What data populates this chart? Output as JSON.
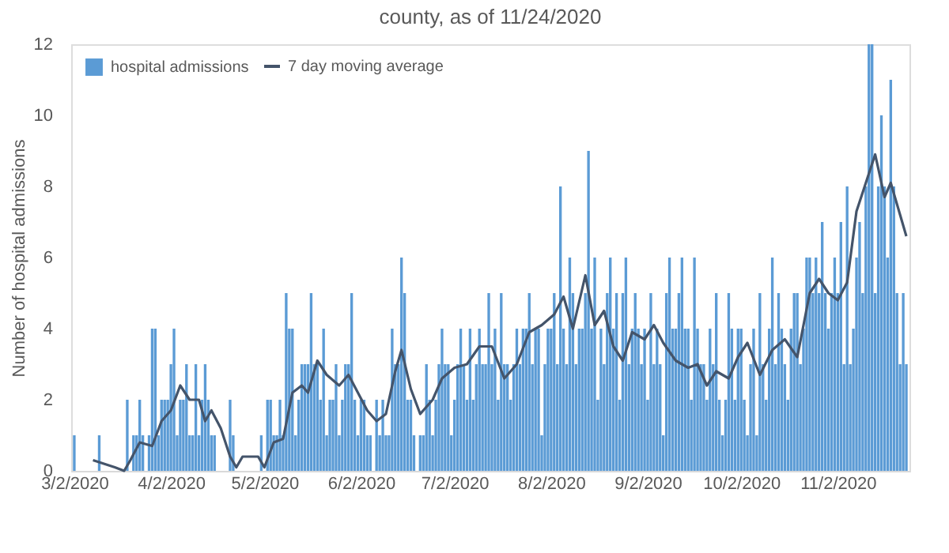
{
  "chart_data": {
    "type": "bar",
    "title": "county, as of 11/24/2020",
    "ylabel": "Number of hospital admissions",
    "x": [
      "2020-03-02",
      "2020-03-03",
      "2020-03-04",
      "2020-03-05",
      "2020-03-06",
      "2020-03-07",
      "2020-03-08",
      "2020-03-09",
      "2020-03-10",
      "2020-03-11",
      "2020-03-12",
      "2020-03-13",
      "2020-03-14",
      "2020-03-15",
      "2020-03-16",
      "2020-03-17",
      "2020-03-18",
      "2020-03-19",
      "2020-03-20",
      "2020-03-21",
      "2020-03-22",
      "2020-03-23",
      "2020-03-24",
      "2020-03-25",
      "2020-03-26",
      "2020-03-27",
      "2020-03-28",
      "2020-03-29",
      "2020-03-30",
      "2020-03-31",
      "2020-04-01",
      "2020-04-02",
      "2020-04-03",
      "2020-04-04",
      "2020-04-05",
      "2020-04-06",
      "2020-04-07",
      "2020-04-08",
      "2020-04-09",
      "2020-04-10",
      "2020-04-11",
      "2020-04-12",
      "2020-04-13",
      "2020-04-14",
      "2020-04-15",
      "2020-04-16",
      "2020-04-17",
      "2020-04-18",
      "2020-04-19",
      "2020-04-20",
      "2020-04-21",
      "2020-04-22",
      "2020-04-23",
      "2020-04-24",
      "2020-04-25",
      "2020-04-26",
      "2020-04-27",
      "2020-04-28",
      "2020-04-29",
      "2020-04-30",
      "2020-05-01",
      "2020-05-02",
      "2020-05-03",
      "2020-05-04",
      "2020-05-05",
      "2020-05-06",
      "2020-05-07",
      "2020-05-08",
      "2020-05-09",
      "2020-05-10",
      "2020-05-11",
      "2020-05-12",
      "2020-05-13",
      "2020-05-14",
      "2020-05-15",
      "2020-05-16",
      "2020-05-17",
      "2020-05-18",
      "2020-05-19",
      "2020-05-20",
      "2020-05-21",
      "2020-05-22",
      "2020-05-23",
      "2020-05-24",
      "2020-05-25",
      "2020-05-26",
      "2020-05-27",
      "2020-05-28",
      "2020-05-29",
      "2020-05-30",
      "2020-05-31",
      "2020-06-01",
      "2020-06-02",
      "2020-06-03",
      "2020-06-04",
      "2020-06-05",
      "2020-06-06",
      "2020-06-07",
      "2020-06-08",
      "2020-06-09",
      "2020-06-10",
      "2020-06-11",
      "2020-06-12",
      "2020-06-13",
      "2020-06-14",
      "2020-06-15",
      "2020-06-16",
      "2020-06-17",
      "2020-06-18",
      "2020-06-19",
      "2020-06-20",
      "2020-06-21",
      "2020-06-22",
      "2020-06-23",
      "2020-06-24",
      "2020-06-25",
      "2020-06-26",
      "2020-06-27",
      "2020-06-28",
      "2020-06-29",
      "2020-06-30",
      "2020-07-01",
      "2020-07-02",
      "2020-07-03",
      "2020-07-04",
      "2020-07-05",
      "2020-07-06",
      "2020-07-07",
      "2020-07-08",
      "2020-07-09",
      "2020-07-10",
      "2020-07-11",
      "2020-07-12",
      "2020-07-13",
      "2020-07-14",
      "2020-07-15",
      "2020-07-16",
      "2020-07-17",
      "2020-07-18",
      "2020-07-19",
      "2020-07-20",
      "2020-07-21",
      "2020-07-22",
      "2020-07-23",
      "2020-07-24",
      "2020-07-25",
      "2020-07-26",
      "2020-07-27",
      "2020-07-28",
      "2020-07-29",
      "2020-07-30",
      "2020-07-31",
      "2020-08-01",
      "2020-08-02",
      "2020-08-03",
      "2020-08-04",
      "2020-08-05",
      "2020-08-06",
      "2020-08-07",
      "2020-08-08",
      "2020-08-09",
      "2020-08-10",
      "2020-08-11",
      "2020-08-12",
      "2020-08-13",
      "2020-08-14",
      "2020-08-15",
      "2020-08-16",
      "2020-08-17",
      "2020-08-18",
      "2020-08-19",
      "2020-08-20",
      "2020-08-21",
      "2020-08-22",
      "2020-08-23",
      "2020-08-24",
      "2020-08-25",
      "2020-08-26",
      "2020-08-27",
      "2020-08-28",
      "2020-08-29",
      "2020-08-30",
      "2020-08-31",
      "2020-09-01",
      "2020-09-02",
      "2020-09-03",
      "2020-09-04",
      "2020-09-05",
      "2020-09-06",
      "2020-09-07",
      "2020-09-08",
      "2020-09-09",
      "2020-09-10",
      "2020-09-11",
      "2020-09-12",
      "2020-09-13",
      "2020-09-14",
      "2020-09-15",
      "2020-09-16",
      "2020-09-17",
      "2020-09-18",
      "2020-09-19",
      "2020-09-20",
      "2020-09-21",
      "2020-09-22",
      "2020-09-23",
      "2020-09-24",
      "2020-09-25",
      "2020-09-26",
      "2020-09-27",
      "2020-09-28",
      "2020-09-29",
      "2020-09-30",
      "2020-10-01",
      "2020-10-02",
      "2020-10-03",
      "2020-10-04",
      "2020-10-05",
      "2020-10-06",
      "2020-10-07",
      "2020-10-08",
      "2020-10-09",
      "2020-10-10",
      "2020-10-11",
      "2020-10-12",
      "2020-10-13",
      "2020-10-14",
      "2020-10-15",
      "2020-10-16",
      "2020-10-17",
      "2020-10-18",
      "2020-10-19",
      "2020-10-20",
      "2020-10-21",
      "2020-10-22",
      "2020-10-23",
      "2020-10-24",
      "2020-10-25",
      "2020-10-26",
      "2020-10-27",
      "2020-10-28",
      "2020-10-29",
      "2020-10-30",
      "2020-10-31",
      "2020-11-01",
      "2020-11-02",
      "2020-11-03",
      "2020-11-04",
      "2020-11-05",
      "2020-11-06",
      "2020-11-07",
      "2020-11-08",
      "2020-11-09",
      "2020-11-10",
      "2020-11-11",
      "2020-11-12",
      "2020-11-13",
      "2020-11-14",
      "2020-11-15",
      "2020-11-16",
      "2020-11-17",
      "2020-11-18",
      "2020-11-19",
      "2020-11-20",
      "2020-11-21",
      "2020-11-22",
      "2020-11-23",
      "2020-11-24"
    ],
    "series": [
      {
        "name": "hospital admissions",
        "color": "#5b9bd5",
        "values": [
          1,
          0,
          0,
          0,
          0,
          0,
          0,
          0,
          1,
          0,
          0,
          0,
          0,
          0,
          0,
          0,
          0,
          2,
          0,
          1,
          1,
          2,
          1,
          0,
          1,
          4,
          4,
          1,
          2,
          2,
          2,
          3,
          4,
          1,
          2,
          2,
          3,
          1,
          1,
          3,
          1,
          2,
          3,
          2,
          1,
          1,
          0,
          0,
          0,
          0,
          2,
          1,
          0,
          0,
          0,
          0,
          0,
          0,
          0,
          0,
          1,
          0,
          2,
          2,
          1,
          1,
          2,
          1,
          5,
          4,
          4,
          1,
          2,
          3,
          3,
          3,
          5,
          3,
          3,
          2,
          4,
          1,
          2,
          2,
          3,
          1,
          2,
          3,
          3,
          5,
          2,
          1,
          2,
          2,
          1,
          1,
          0,
          2,
          1,
          2,
          1,
          1,
          4,
          3,
          3,
          6,
          5,
          2,
          2,
          1,
          0,
          1,
          1,
          3,
          2,
          1,
          2,
          3,
          4,
          3,
          3,
          1,
          2,
          3,
          4,
          3,
          2,
          4,
          2,
          3,
          4,
          3,
          3,
          5,
          3,
          4,
          2,
          5,
          3,
          3,
          2,
          3,
          4,
          3,
          4,
          4,
          5,
          3,
          4,
          4,
          1,
          3,
          4,
          4,
          5,
          3,
          8,
          4,
          3,
          6,
          5,
          3,
          4,
          4,
          5,
          9,
          4,
          6,
          2,
          4,
          3,
          5,
          6,
          4,
          5,
          2,
          5,
          6,
          3,
          4,
          5,
          4,
          3,
          4,
          2,
          5,
          3,
          4,
          3,
          1,
          5,
          6,
          4,
          4,
          5,
          6,
          4,
          4,
          2,
          6,
          4,
          3,
          3,
          2,
          4,
          3,
          5,
          2,
          1,
          2,
          5,
          4,
          2,
          4,
          4,
          2,
          1,
          3,
          4,
          1,
          5,
          3,
          2,
          4,
          6,
          3,
          5,
          4,
          3,
          2,
          4,
          5,
          5,
          3,
          4,
          6,
          6,
          5,
          6,
          5,
          7,
          5,
          4,
          5,
          6,
          5,
          7,
          3,
          8,
          3,
          4,
          6,
          7,
          5,
          8,
          12,
          12,
          5,
          8,
          10,
          8,
          6,
          11,
          8,
          5,
          3,
          5,
          3
        ]
      },
      {
        "name": "7 day moving average",
        "type": "line",
        "color": "#44546a",
        "x": [
          "2020-03-08",
          "2020-03-15",
          "2020-03-18",
          "2020-03-20",
          "2020-03-23",
          "2020-03-27",
          "2020-03-30",
          "2020-04-02",
          "2020-04-05",
          "2020-04-08",
          "2020-04-11",
          "2020-04-13",
          "2020-04-15",
          "2020-04-18",
          "2020-04-21",
          "2020-04-23",
          "2020-04-25",
          "2020-04-30",
          "2020-05-02",
          "2020-05-05",
          "2020-05-08",
          "2020-05-11",
          "2020-05-14",
          "2020-05-16",
          "2020-05-19",
          "2020-05-22",
          "2020-05-26",
          "2020-05-29",
          "2020-06-01",
          "2020-06-04",
          "2020-06-07",
          "2020-06-10",
          "2020-06-13",
          "2020-06-15",
          "2020-06-18",
          "2020-06-21",
          "2020-06-25",
          "2020-06-28",
          "2020-07-02",
          "2020-07-06",
          "2020-07-10",
          "2020-07-14",
          "2020-07-18",
          "2020-07-22",
          "2020-07-26",
          "2020-07-30",
          "2020-08-03",
          "2020-08-06",
          "2020-08-09",
          "2020-08-13",
          "2020-08-16",
          "2020-08-19",
          "2020-08-22",
          "2020-08-25",
          "2020-08-28",
          "2020-09-01",
          "2020-09-04",
          "2020-09-07",
          "2020-09-11",
          "2020-09-15",
          "2020-09-18",
          "2020-09-21",
          "2020-09-24",
          "2020-09-28",
          "2020-10-01",
          "2020-10-04",
          "2020-10-08",
          "2020-10-12",
          "2020-10-16",
          "2020-10-20",
          "2020-10-24",
          "2020-10-27",
          "2020-10-30",
          "2020-11-02",
          "2020-11-05",
          "2020-11-08",
          "2020-11-11",
          "2020-11-14",
          "2020-11-17",
          "2020-11-19",
          "2020-11-22",
          "2020-11-24"
        ],
        "values": [
          0.3,
          0.1,
          0,
          0.3,
          0.8,
          0.7,
          1.4,
          1.7,
          2.4,
          2.0,
          2.0,
          1.4,
          1.7,
          1.2,
          0.4,
          0.1,
          0.4,
          0.4,
          0.1,
          0.8,
          0.9,
          2.2,
          2.4,
          2.2,
          3.1,
          2.7,
          2.4,
          2.7,
          2.2,
          1.7,
          1.4,
          1.6,
          2.8,
          3.4,
          2.3,
          1.6,
          2.0,
          2.6,
          2.9,
          3.0,
          3.5,
          3.5,
          2.6,
          3.0,
          3.9,
          4.1,
          4.4,
          4.9,
          4.0,
          5.5,
          4.1,
          4.5,
          3.5,
          3.1,
          3.9,
          3.7,
          4.1,
          3.6,
          3.1,
          2.9,
          3.0,
          2.4,
          2.8,
          2.6,
          3.2,
          3.6,
          2.7,
          3.4,
          3.7,
          3.2,
          5.0,
          5.4,
          5.0,
          4.8,
          5.3,
          7.3,
          8.1,
          8.9,
          7.7,
          8.1,
          7.2,
          6.6
        ]
      }
    ],
    "xlim": [
      "2020-03-01",
      "2020-11-25"
    ],
    "xticks": [
      {
        "value": "2020-03-02",
        "label": "3/2/2020"
      },
      {
        "value": "2020-04-02",
        "label": "4/2/2020"
      },
      {
        "value": "2020-05-02",
        "label": "5/2/2020"
      },
      {
        "value": "2020-06-02",
        "label": "6/2/2020"
      },
      {
        "value": "2020-07-02",
        "label": "7/2/2020"
      },
      {
        "value": "2020-08-02",
        "label": "8/2/2020"
      },
      {
        "value": "2020-09-02",
        "label": "9/2/2020"
      },
      {
        "value": "2020-10-02",
        "label": "10/2/2020"
      },
      {
        "value": "2020-11-02",
        "label": "11/2/2020"
      }
    ],
    "ylim": [
      0,
      12
    ],
    "yticks": [
      0,
      2,
      4,
      6,
      8,
      10,
      12
    ],
    "grid": false,
    "legend": "top left",
    "marker": "none",
    "line_style": "solid"
  }
}
